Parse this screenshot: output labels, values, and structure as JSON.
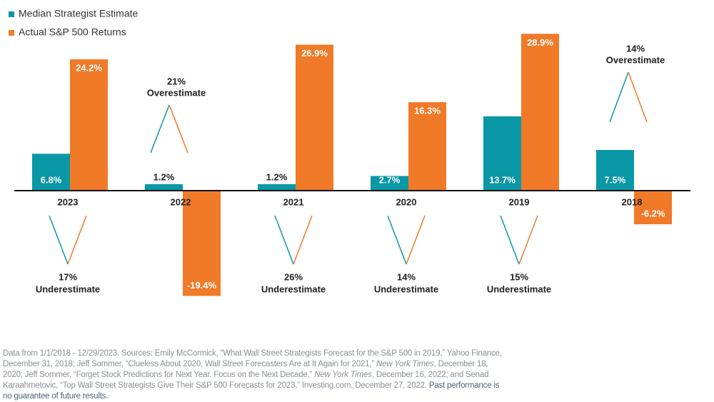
{
  "chart_data": {
    "type": "bar",
    "categories": [
      "2023",
      "2022",
      "2021",
      "2020",
      "2019",
      "2018"
    ],
    "series": [
      {
        "name": "Median Strategist Estimate",
        "color": "#0a97a6",
        "values": [
          6.8,
          1.2,
          1.2,
          2.7,
          13.7,
          7.5
        ],
        "value_labels": [
          "6.8%",
          "1.2%",
          "1.2%",
          "2.7%",
          "13.7%",
          "7.5%"
        ]
      },
      {
        "name": "Actual S&P 500 Returns",
        "color": "#f07a28",
        "values": [
          24.2,
          -19.4,
          26.9,
          16.3,
          28.9,
          -6.2
        ],
        "value_labels": [
          "24.2%",
          "-19.4%",
          "26.9%",
          "16.3%",
          "28.9%",
          "-6.2%"
        ]
      }
    ],
    "annotations": [
      {
        "lines": [
          "17%",
          "Underestimate"
        ],
        "position": "below"
      },
      {
        "lines": [
          "21%",
          "Overestimate"
        ],
        "position": "above"
      },
      {
        "lines": [
          "26%",
          "Underestimate"
        ],
        "position": "below"
      },
      {
        "lines": [
          "14%",
          "Underestimate"
        ],
        "position": "below"
      },
      {
        "lines": [
          "15%",
          "Underestimate"
        ],
        "position": "below"
      },
      {
        "lines": [
          "14%",
          "Overestimate"
        ],
        "position": "above"
      }
    ],
    "legend": "top-left",
    "footnote": [
      {
        "text": "Data from 1/1/2018 - 12/29/2023. Sources: Emily McCormick, “What Wall Street Strategists Forecast for the S&P 500 in 2019,” Yahoo Finance, December 31, 2018; Jeff Sommer, “Clueless About 2020, Wall Street Forecasters Are at It Again for 2021,” ",
        "style": "normal"
      },
      {
        "text": "New York Times",
        "style": "italic"
      },
      {
        "text": ", December 18, 2020; Jeff Sommer, “Forget Stock Predictions for Next Year. Focus on the Next Decade,” ",
        "style": "normal"
      },
      {
        "text": "New York Times",
        "style": "italic"
      },
      {
        "text": ", December 16, 2022; and Senad Karaahmetovic, “Top Wall Street Strategists Give Their S&P 500 Forecasts for 2023,” Investing.com, December 27, 2022. ",
        "style": "normal"
      },
      {
        "text": "Past performance is no guarantee of future results.",
        "style": "emphasis"
      }
    ]
  }
}
